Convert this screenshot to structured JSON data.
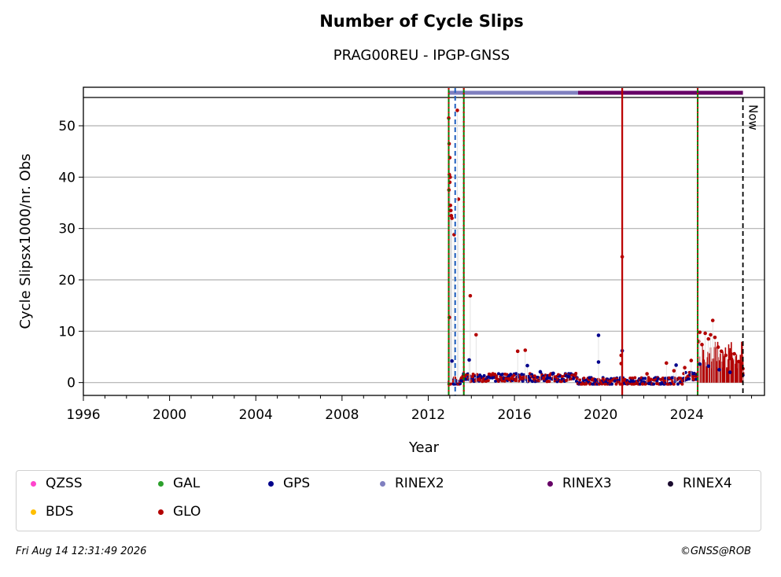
{
  "chart_data": {
    "type": "scatter",
    "title": "Number of Cycle Slips",
    "subtitle": "PRAG00REU - IPGP-GNSS",
    "xlabel": "Year",
    "ylabel": "Cycle Slipsx1000/nr. Obs",
    "xlim": [
      1996,
      2027.6
    ],
    "ylim": [
      -2.5,
      57.5
    ],
    "x_ticks": [
      "1996",
      "2000",
      "2004",
      "2008",
      "2012",
      "2016",
      "2020",
      "2024"
    ],
    "y_ticks": [
      "0",
      "10",
      "20",
      "30",
      "40",
      "50"
    ],
    "grid": "horizontal",
    "series": [
      {
        "name": "GLO",
        "color": "#b30000",
        "points": [
          [
            2012.95,
            51.5
          ],
          [
            2012.97,
            46.5
          ],
          [
            2013.0,
            43.8
          ],
          [
            2012.98,
            40.5
          ],
          [
            2013.02,
            40.0
          ],
          [
            2013.0,
            39.0
          ],
          [
            2012.96,
            37.5
          ],
          [
            2013.03,
            34.5
          ],
          [
            2013.05,
            33.5
          ],
          [
            2013.07,
            32.5
          ],
          [
            2013.1,
            32.0
          ],
          [
            2013.2,
            28.8
          ],
          [
            2013.4,
            35.7
          ],
          [
            2013.35,
            53.0
          ],
          [
            2012.98,
            12.7
          ],
          [
            2013.95,
            16.9
          ],
          [
            2014.22,
            9.3
          ],
          [
            2016.15,
            6.1
          ],
          [
            2016.5,
            6.3
          ],
          [
            2021.0,
            24.5
          ],
          [
            2020.95,
            5.3
          ],
          [
            2020.95,
            3.7
          ],
          [
            2022.15,
            1.7
          ],
          [
            2023.05,
            3.8
          ],
          [
            2023.4,
            2.3
          ],
          [
            2023.9,
            2.9
          ],
          [
            2024.2,
            4.3
          ],
          [
            2024.55,
            8.0
          ],
          [
            2024.6,
            9.8
          ],
          [
            2024.7,
            7.4
          ],
          [
            2024.85,
            9.6
          ],
          [
            2025.0,
            8.5
          ],
          [
            2025.1,
            9.3
          ],
          [
            2025.2,
            12.1
          ],
          [
            2025.3,
            8.8
          ],
          [
            2025.45,
            6.9
          ],
          [
            2025.6,
            6.1
          ],
          [
            2025.8,
            5.3
          ],
          [
            2026.0,
            4.7
          ],
          [
            2026.2,
            5.6
          ],
          [
            2026.4,
            4.1
          ],
          [
            2026.6,
            2.7
          ]
        ]
      },
      {
        "name": "GPS",
        "color": "#00008b",
        "points": [
          [
            2013.1,
            4.2
          ],
          [
            2013.9,
            4.4
          ],
          [
            2016.6,
            3.3
          ],
          [
            2017.2,
            2.1
          ],
          [
            2017.8,
            1.8
          ],
          [
            2018.5,
            1.2
          ],
          [
            2019.9,
            9.2
          ],
          [
            2019.9,
            4.0
          ],
          [
            2021.0,
            6.2
          ],
          [
            2023.5,
            3.4
          ],
          [
            2024.6,
            3.6
          ],
          [
            2025.0,
            3.2
          ],
          [
            2025.5,
            2.5
          ],
          [
            2026.0,
            2.0
          ]
        ]
      },
      {
        "name": "GAL",
        "color": "#2ca02c",
        "points": []
      },
      {
        "name": "QZSS",
        "color": "#ff44cc",
        "points": []
      },
      {
        "name": "BDS",
        "color": "#ffbf00",
        "points": []
      }
    ],
    "rinex_bar": [
      {
        "name": "RINEX2",
        "color": "#8080c0",
        "from": 2012.95,
        "to": 2018.95
      },
      {
        "name": "RINEX3",
        "color": "#660066",
        "from": 2018.95,
        "to": 2026.6
      }
    ],
    "event_lines": [
      {
        "kind": "green-red-dotted",
        "x": 2012.95
      },
      {
        "kind": "blue-dashed",
        "x": 2013.25
      },
      {
        "kind": "green-red-dotted",
        "x": 2013.65
      },
      {
        "kind": "red-solid",
        "x": 2021.0
      },
      {
        "kind": "green-red-dotted",
        "x": 2024.5
      },
      {
        "kind": "black-dashed",
        "x": 2026.6
      }
    ],
    "now_label": "Now",
    "legend": {
      "placement": "bottom",
      "entries": [
        {
          "label": "QZSS",
          "color": "#ff44cc"
        },
        {
          "label": "GAL",
          "color": "#2ca02c"
        },
        {
          "label": "GPS",
          "color": "#00008b"
        },
        {
          "label": "RINEX2",
          "color": "#8080c0"
        },
        {
          "label": "RINEX3",
          "color": "#660066"
        },
        {
          "label": "RINEX4",
          "color": "#1a0a2e"
        },
        {
          "label": "BDS",
          "color": "#ffbf00"
        },
        {
          "label": "GLO",
          "color": "#b30000"
        }
      ]
    }
  },
  "footer": {
    "timestamp": "Fri Aug 14 12:31:49 2026",
    "copyright": "©GNSS@ROB"
  }
}
